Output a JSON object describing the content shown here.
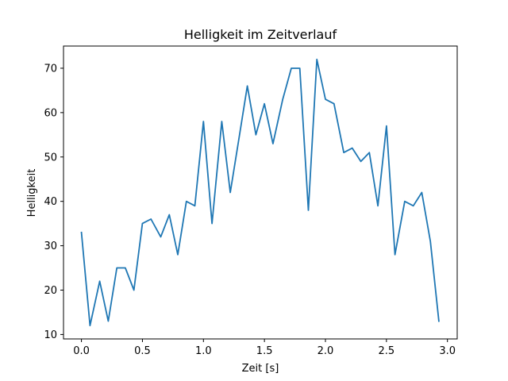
{
  "chart_data": {
    "type": "line",
    "title": "Helligkeit im Zeitverlauf",
    "xlabel": "Zeit [s]",
    "ylabel": "Helligkeit",
    "xlim": [
      -0.147,
      3.08
    ],
    "ylim": [
      9,
      75
    ],
    "xticks": [
      0.0,
      0.5,
      1.0,
      1.5,
      2.0,
      2.5,
      3.0
    ],
    "xtick_labels": [
      "0.0",
      "0.5",
      "1.0",
      "1.5",
      "2.0",
      "2.5",
      "3.0"
    ],
    "yticks": [
      10,
      20,
      30,
      40,
      50,
      60,
      70
    ],
    "ytick_labels": [
      "10",
      "20",
      "30",
      "40",
      "50",
      "60",
      "70"
    ],
    "grid": false,
    "series": [
      {
        "color": "#1f77b4",
        "x": [
          0.0,
          0.07,
          0.15,
          0.22,
          0.29,
          0.36,
          0.43,
          0.5,
          0.57,
          0.65,
          0.72,
          0.79,
          0.86,
          0.93,
          1.0,
          1.07,
          1.15,
          1.22,
          1.29,
          1.36,
          1.43,
          1.5,
          1.57,
          1.65,
          1.72,
          1.79,
          1.86,
          1.93,
          2.0,
          2.07,
          2.15,
          2.22,
          2.29,
          2.36,
          2.43,
          2.5,
          2.57,
          2.65,
          2.72,
          2.79,
          2.86,
          2.93
        ],
        "y": [
          33,
          12,
          22,
          13,
          25,
          25,
          20,
          35,
          36,
          32,
          37,
          28,
          40,
          39,
          58,
          35,
          58,
          42,
          54,
          66,
          55,
          62,
          53,
          63,
          70,
          70,
          38,
          72,
          63,
          62,
          51,
          52,
          49,
          51,
          39,
          57,
          28,
          40,
          39,
          42,
          31,
          13
        ]
      }
    ]
  }
}
